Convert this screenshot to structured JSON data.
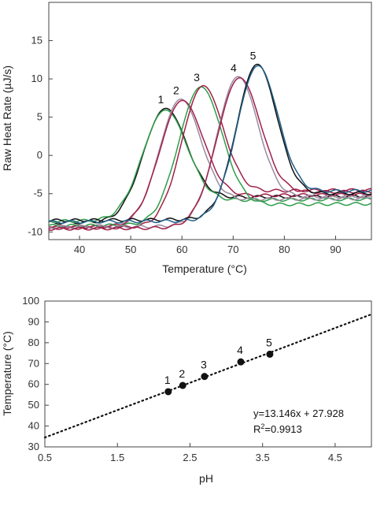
{
  "chart_data": [
    {
      "type": "line",
      "xlabel": "Temperature (°C)",
      "ylabel": "Raw Heat Rate (µJ/s)",
      "xlim": [
        34,
        97
      ],
      "ylim": [
        -11,
        20
      ],
      "xticks": [
        40,
        50,
        60,
        70,
        80,
        90
      ],
      "yticks": [
        -10,
        -5,
        0,
        5,
        10,
        15
      ],
      "grid": false,
      "legend": "none",
      "peak_labels": [
        "1",
        "2",
        "3",
        "4",
        "5"
      ],
      "series": [
        {
          "label": "1",
          "color": "#111111",
          "peak_x": 56.5,
          "peak_y": 6.0,
          "width": 4.2,
          "base_left": -8.8,
          "base_right": -5.6
        },
        {
          "label": "1",
          "color": "#2e9e4a",
          "peak_x": 56.5,
          "peak_y": 5.8,
          "width": 4.3,
          "base_left": -8.6,
          "base_right": -6.0
        },
        {
          "label": "2",
          "color": "#9a8aa0",
          "peak_x": 59.5,
          "peak_y": 7.2,
          "width": 4.0,
          "base_left": -9.3,
          "base_right": -5.9
        },
        {
          "label": "2",
          "color": "#a0204a",
          "peak_x": 59.7,
          "peak_y": 7.0,
          "width": 4.2,
          "base_left": -9.4,
          "base_right": -5.4
        },
        {
          "label": "3",
          "color": "#2e9e4a",
          "peak_x": 63.5,
          "peak_y": 8.8,
          "width": 4.2,
          "base_left": -9.2,
          "base_right": -6.6
        },
        {
          "label": "3",
          "color": "#a0204a",
          "peak_x": 63.8,
          "peak_y": 8.9,
          "width": 4.0,
          "base_left": -9.5,
          "base_right": -4.8
        },
        {
          "label": "4",
          "color": "#9a8aa0",
          "peak_x": 70.7,
          "peak_y": 10.1,
          "width": 4.0,
          "base_left": -9.4,
          "base_right": -5.6
        },
        {
          "label": "4",
          "color": "#a0204a",
          "peak_x": 70.9,
          "peak_y": 9.9,
          "width": 4.2,
          "base_left": -9.6,
          "base_right": -5.0
        },
        {
          "label": "5",
          "color": "#111111",
          "peak_x": 74.5,
          "peak_y": 11.7,
          "width": 3.9,
          "base_left": -8.5,
          "base_right": -5.2
        },
        {
          "label": "5",
          "color": "#1f5f8a",
          "peak_x": 74.6,
          "peak_y": 11.5,
          "width": 4.0,
          "base_left": -8.7,
          "base_right": -4.9
        }
      ]
    },
    {
      "type": "scatter",
      "xlabel": "pH",
      "ylabel": "Temperature (°C)",
      "xlim": [
        0.5,
        5.0
      ],
      "ylim": [
        30,
        100
      ],
      "xticks": [
        "0.5",
        "1.5",
        "2.5",
        "3.5",
        "4.5"
      ],
      "yticks": [
        30,
        40,
        50,
        60,
        70,
        80,
        90,
        100
      ],
      "grid": false,
      "legend": "none",
      "points": [
        {
          "label": "1",
          "x": 2.2,
          "y": 56.5
        },
        {
          "label": "2",
          "x": 2.4,
          "y": 59.5
        },
        {
          "label": "3",
          "x": 2.7,
          "y": 63.8
        },
        {
          "label": "4",
          "x": 3.2,
          "y": 70.8
        },
        {
          "label": "5",
          "x": 3.6,
          "y": 74.5
        }
      ],
      "fit": {
        "slope": 13.146,
        "intercept": 27.928,
        "style": "dotted",
        "x_range": [
          0.5,
          5.0
        ]
      },
      "annotation_line1": "y=13.146x + 27.928",
      "annotation_r2_prefix": "R",
      "annotation_r2_sup": "2",
      "annotation_r2_value": "=0.9913"
    }
  ]
}
